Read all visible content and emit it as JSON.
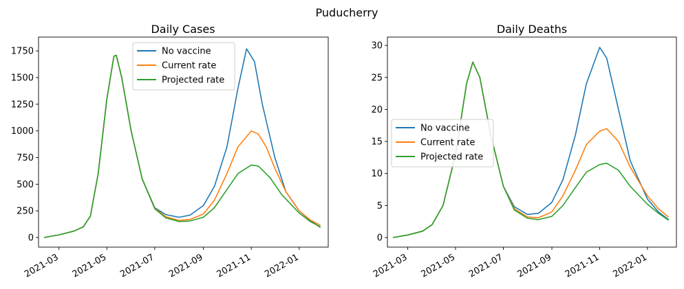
{
  "figure": {
    "suptitle": "Puducherry"
  },
  "chart_data": [
    {
      "type": "line",
      "title": "Daily Cases",
      "xlabel": "",
      "ylabel": "",
      "x_type": "date",
      "xlim": [
        "2021-02-03",
        "2022-02-07"
      ],
      "ylim": [
        -90,
        1880
      ],
      "x_ticks": [
        "2021-03-01",
        "2021-05-01",
        "2021-07-01",
        "2021-09-01",
        "2021-11-01",
        "2022-01-01"
      ],
      "x_tick_labels": [
        "2021-03",
        "2021-05",
        "2021-07",
        "2021-09",
        "2021-11",
        "2022-01"
      ],
      "y_ticks": [
        0,
        250,
        500,
        750,
        1000,
        1250,
        1500,
        1750
      ],
      "y_tick_labels": [
        "0",
        "250",
        "500",
        "750",
        "1000",
        "1250",
        "1500",
        "1750"
      ],
      "grid": false,
      "legend": {
        "placement": "upper-center",
        "entries": [
          "No vaccine",
          "Current rate",
          "Projected rate"
        ]
      },
      "series": [
        {
          "name": "No vaccine",
          "color": "#1f77b4",
          "points": [
            [
              "2021-02-10",
              0
            ],
            [
              "2021-03-01",
              25
            ],
            [
              "2021-03-20",
              60
            ],
            [
              "2021-04-01",
              100
            ],
            [
              "2021-04-10",
              200
            ],
            [
              "2021-04-20",
              600
            ],
            [
              "2021-05-01",
              1300
            ],
            [
              "2021-05-10",
              1700
            ],
            [
              "2021-05-13",
              1710
            ],
            [
              "2021-05-20",
              1500
            ],
            [
              "2021-06-01",
              1000
            ],
            [
              "2021-06-15",
              550
            ],
            [
              "2021-07-01",
              280
            ],
            [
              "2021-07-15",
              215
            ],
            [
              "2021-08-01",
              190
            ],
            [
              "2021-08-15",
              210
            ],
            [
              "2021-09-01",
              300
            ],
            [
              "2021-09-15",
              480
            ],
            [
              "2021-10-01",
              850
            ],
            [
              "2021-10-15",
              1400
            ],
            [
              "2021-10-26",
              1770
            ],
            [
              "2021-11-05",
              1650
            ],
            [
              "2021-11-15",
              1250
            ],
            [
              "2021-12-01",
              750
            ],
            [
              "2021-12-15",
              430
            ],
            [
              "2022-01-01",
              250
            ],
            [
              "2022-01-15",
              160
            ],
            [
              "2022-01-28",
              95
            ]
          ]
        },
        {
          "name": "Current rate",
          "color": "#ff7f0e",
          "points": [
            [
              "2021-02-10",
              0
            ],
            [
              "2021-03-01",
              25
            ],
            [
              "2021-03-20",
              60
            ],
            [
              "2021-04-01",
              100
            ],
            [
              "2021-04-10",
              200
            ],
            [
              "2021-04-20",
              600
            ],
            [
              "2021-05-01",
              1300
            ],
            [
              "2021-05-10",
              1700
            ],
            [
              "2021-05-13",
              1710
            ],
            [
              "2021-05-20",
              1500
            ],
            [
              "2021-06-01",
              1000
            ],
            [
              "2021-06-15",
              550
            ],
            [
              "2021-07-01",
              275
            ],
            [
              "2021-07-15",
              195
            ],
            [
              "2021-08-01",
              160
            ],
            [
              "2021-08-15",
              170
            ],
            [
              "2021-09-01",
              220
            ],
            [
              "2021-09-15",
              350
            ],
            [
              "2021-10-01",
              600
            ],
            [
              "2021-10-15",
              850
            ],
            [
              "2021-11-01",
              1000
            ],
            [
              "2021-11-10",
              970
            ],
            [
              "2021-11-20",
              850
            ],
            [
              "2021-12-01",
              650
            ],
            [
              "2021-12-15",
              430
            ],
            [
              "2022-01-01",
              250
            ],
            [
              "2022-01-15",
              165
            ],
            [
              "2022-01-28",
              115
            ]
          ]
        },
        {
          "name": "Projected rate",
          "color": "#2ca02c",
          "points": [
            [
              "2021-02-10",
              0
            ],
            [
              "2021-03-01",
              25
            ],
            [
              "2021-03-20",
              60
            ],
            [
              "2021-04-01",
              100
            ],
            [
              "2021-04-10",
              200
            ],
            [
              "2021-04-20",
              600
            ],
            [
              "2021-05-01",
              1300
            ],
            [
              "2021-05-10",
              1700
            ],
            [
              "2021-05-13",
              1710
            ],
            [
              "2021-05-20",
              1500
            ],
            [
              "2021-06-01",
              1000
            ],
            [
              "2021-06-15",
              550
            ],
            [
              "2021-07-01",
              270
            ],
            [
              "2021-07-15",
              185
            ],
            [
              "2021-08-01",
              150
            ],
            [
              "2021-08-15",
              155
            ],
            [
              "2021-09-01",
              190
            ],
            [
              "2021-09-15",
              280
            ],
            [
              "2021-10-01",
              450
            ],
            [
              "2021-10-15",
              600
            ],
            [
              "2021-11-01",
              680
            ],
            [
              "2021-11-10",
              670
            ],
            [
              "2021-11-25",
              560
            ],
            [
              "2021-12-10",
              400
            ],
            [
              "2022-01-01",
              230
            ],
            [
              "2022-01-15",
              150
            ],
            [
              "2022-01-28",
              100
            ]
          ]
        }
      ]
    },
    {
      "type": "line",
      "title": "Daily Deaths",
      "xlabel": "",
      "ylabel": "",
      "x_type": "date",
      "xlim": [
        "2021-02-03",
        "2022-02-07"
      ],
      "ylim": [
        -1.5,
        31.3
      ],
      "x_ticks": [
        "2021-03-01",
        "2021-05-01",
        "2021-07-01",
        "2021-09-01",
        "2021-11-01",
        "2022-01-01"
      ],
      "x_tick_labels": [
        "2021-03",
        "2021-05",
        "2021-07",
        "2021-09",
        "2021-11",
        "2022-01"
      ],
      "y_ticks": [
        0,
        5,
        10,
        15,
        20,
        25,
        30
      ],
      "y_tick_labels": [
        "0",
        "5",
        "10",
        "15",
        "20",
        "25",
        "30"
      ],
      "grid": false,
      "legend": {
        "placement": "center-left",
        "entries": [
          "No vaccine",
          "Current rate",
          "Projected rate"
        ]
      },
      "series": [
        {
          "name": "No vaccine",
          "color": "#1f77b4",
          "points": [
            [
              "2021-02-10",
              0
            ],
            [
              "2021-03-01",
              0.4
            ],
            [
              "2021-03-20",
              1.0
            ],
            [
              "2021-04-01",
              2.0
            ],
            [
              "2021-04-15",
              5.0
            ],
            [
              "2021-05-01",
              13.0
            ],
            [
              "2021-05-15",
              24.0
            ],
            [
              "2021-05-23",
              27.4
            ],
            [
              "2021-06-01",
              25.0
            ],
            [
              "2021-06-15",
              16.0
            ],
            [
              "2021-07-01",
              8.0
            ],
            [
              "2021-07-15",
              4.8
            ],
            [
              "2021-08-01",
              3.6
            ],
            [
              "2021-08-15",
              3.8
            ],
            [
              "2021-09-01",
              5.5
            ],
            [
              "2021-09-15",
              9.0
            ],
            [
              "2021-10-01",
              16.0
            ],
            [
              "2021-10-15",
              24.0
            ],
            [
              "2021-11-01",
              29.7
            ],
            [
              "2021-11-10",
              28.0
            ],
            [
              "2021-11-25",
              20.0
            ],
            [
              "2021-12-10",
              12.0
            ],
            [
              "2022-01-01",
              6.0
            ],
            [
              "2022-01-15",
              4.0
            ],
            [
              "2022-01-28",
              2.8
            ]
          ]
        },
        {
          "name": "Current rate",
          "color": "#ff7f0e",
          "points": [
            [
              "2021-02-10",
              0
            ],
            [
              "2021-03-01",
              0.4
            ],
            [
              "2021-03-20",
              1.0
            ],
            [
              "2021-04-01",
              2.0
            ],
            [
              "2021-04-15",
              5.0
            ],
            [
              "2021-05-01",
              13.0
            ],
            [
              "2021-05-15",
              24.0
            ],
            [
              "2021-05-23",
              27.4
            ],
            [
              "2021-06-01",
              25.0
            ],
            [
              "2021-06-15",
              16.0
            ],
            [
              "2021-07-01",
              8.0
            ],
            [
              "2021-07-15",
              4.5
            ],
            [
              "2021-08-01",
              3.2
            ],
            [
              "2021-08-15",
              3.1
            ],
            [
              "2021-09-01",
              4.0
            ],
            [
              "2021-09-15",
              6.5
            ],
            [
              "2021-10-01",
              10.5
            ],
            [
              "2021-10-15",
              14.5
            ],
            [
              "2021-11-01",
              16.6
            ],
            [
              "2021-11-10",
              17.0
            ],
            [
              "2021-11-25",
              15.0
            ],
            [
              "2021-12-10",
              11.0
            ],
            [
              "2022-01-01",
              6.5
            ],
            [
              "2022-01-15",
              4.5
            ],
            [
              "2022-01-28",
              3.2
            ]
          ]
        },
        {
          "name": "Projected rate",
          "color": "#2ca02c",
          "points": [
            [
              "2021-02-10",
              0
            ],
            [
              "2021-03-01",
              0.4
            ],
            [
              "2021-03-20",
              1.0
            ],
            [
              "2021-04-01",
              2.0
            ],
            [
              "2021-04-15",
              5.0
            ],
            [
              "2021-05-01",
              13.0
            ],
            [
              "2021-05-15",
              24.0
            ],
            [
              "2021-05-23",
              27.4
            ],
            [
              "2021-06-01",
              25.0
            ],
            [
              "2021-06-15",
              16.0
            ],
            [
              "2021-07-01",
              8.0
            ],
            [
              "2021-07-15",
              4.3
            ],
            [
              "2021-08-01",
              3.0
            ],
            [
              "2021-08-15",
              2.8
            ],
            [
              "2021-09-01",
              3.3
            ],
            [
              "2021-09-15",
              5.0
            ],
            [
              "2021-10-01",
              7.8
            ],
            [
              "2021-10-15",
              10.2
            ],
            [
              "2021-11-01",
              11.4
            ],
            [
              "2021-11-10",
              11.6
            ],
            [
              "2021-11-25",
              10.5
            ],
            [
              "2021-12-10",
              8.0
            ],
            [
              "2022-01-01",
              5.2
            ],
            [
              "2022-01-15",
              3.8
            ],
            [
              "2022-01-28",
              2.7
            ]
          ]
        }
      ]
    }
  ]
}
